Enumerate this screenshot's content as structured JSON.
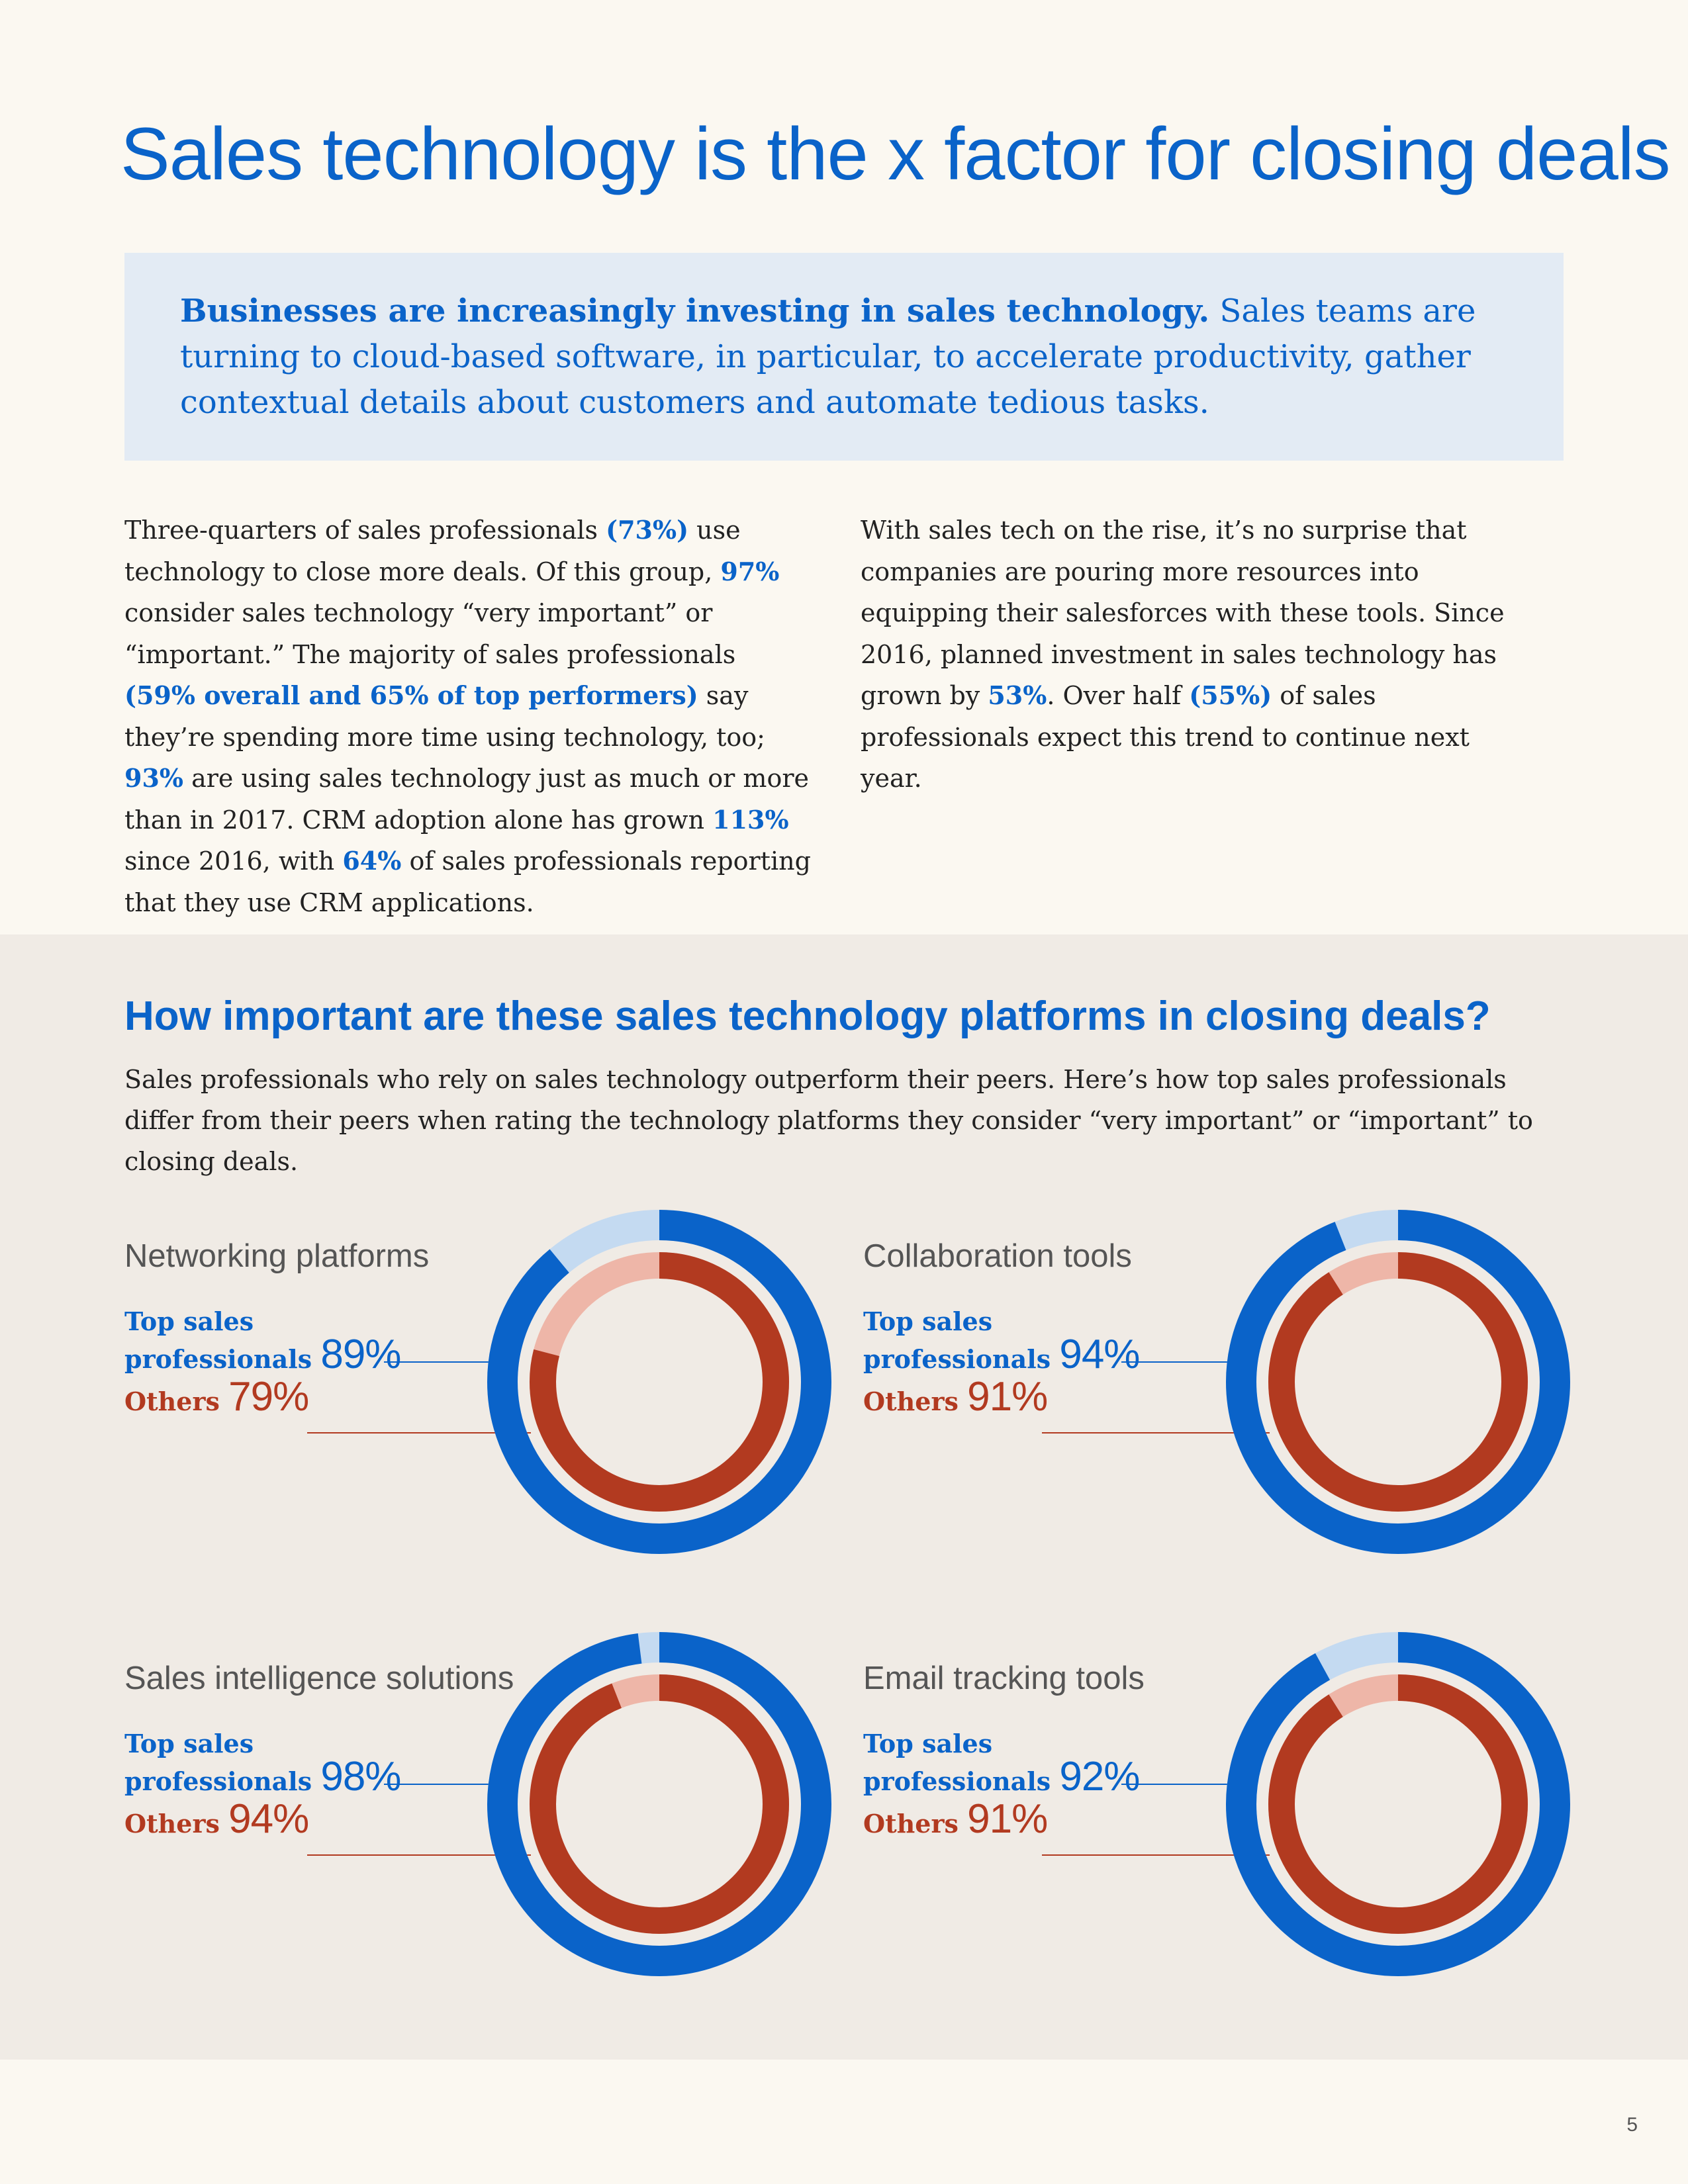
{
  "title": "Sales technology is the x factor for closing deals",
  "intro": {
    "bold": "Businesses are increasingly investing in sales technology.",
    "rest": " Sales teams are turning to cloud-based software, in particular, to accelerate productivity, gather contextual details about customers and automate tedious tasks."
  },
  "left_col": {
    "t1": "Three-quarters of sales professionals ",
    "h1": "(73%)",
    "t2": " use technology to close more deals. Of this group, ",
    "h2": "97%",
    "t3": " consider sales technology “very important” or “important.” The majority of sales professionals ",
    "h3": "(59% overall and 65% of top performers)",
    "t4": " say they’re spending more time using technology, too; ",
    "h4": "93%",
    "t5": " are using sales technology just as much or more than in 2017. CRM adoption alone has grown ",
    "h5": "113%",
    "t6": " since 2016, with ",
    "h6": "64%",
    "t7": " of sales professionals reporting that they use CRM applications."
  },
  "right_col": {
    "t1": "With sales tech on the rise, it’s no surprise that companies are pouring more resources into equipping their salesforces with these tools. Since 2016, planned investment in sales technology has grown by ",
    "h1": "53%",
    "t2": ". Over half ",
    "h2": "(55%)",
    "t3": " of sales professionals expect this trend to continue next year."
  },
  "section": {
    "title": "How important are these sales technology platforms in closing deals?",
    "desc": "Sales professionals who rely on sales technology outperform their peers. Here’s how top sales professionals differ from their peers when rating the technology platforms they consider “very important” or “important” to closing deals."
  },
  "colors": {
    "top": "#0a63c9",
    "top_rest": "#c4daf1",
    "others": "#b23a20",
    "others_rest": "#eeb6a8"
  },
  "chart_data": [
    {
      "type": "pie",
      "title": "Networking platforms",
      "top_label_1": "Top sales",
      "top_label_2": "professionals",
      "others_label": "Others",
      "series": [
        {
          "name": "Top sales professionals",
          "value": 89,
          "display": "89%"
        },
        {
          "name": "Others",
          "value": 79,
          "display": "79%"
        }
      ]
    },
    {
      "type": "pie",
      "title": "Collaboration tools",
      "top_label_1": "Top sales",
      "top_label_2": "professionals",
      "others_label": "Others",
      "series": [
        {
          "name": "Top sales professionals",
          "value": 94,
          "display": "94%"
        },
        {
          "name": "Others",
          "value": 91,
          "display": "91%"
        }
      ]
    },
    {
      "type": "pie",
      "title": "Sales intelligence solutions",
      "top_label_1": "Top sales",
      "top_label_2": "professionals",
      "others_label": "Others",
      "series": [
        {
          "name": "Top sales professionals",
          "value": 98,
          "display": "98%"
        },
        {
          "name": "Others",
          "value": 94,
          "display": "94%"
        }
      ]
    },
    {
      "type": "pie",
      "title": "Email tracking tools",
      "top_label_1": "Top sales",
      "top_label_2": "professionals",
      "others_label": "Others",
      "series": [
        {
          "name": "Top sales professionals",
          "value": 92,
          "display": "92%"
        },
        {
          "name": "Others",
          "value": 91,
          "display": "91%"
        }
      ]
    }
  ],
  "page_number": "5"
}
